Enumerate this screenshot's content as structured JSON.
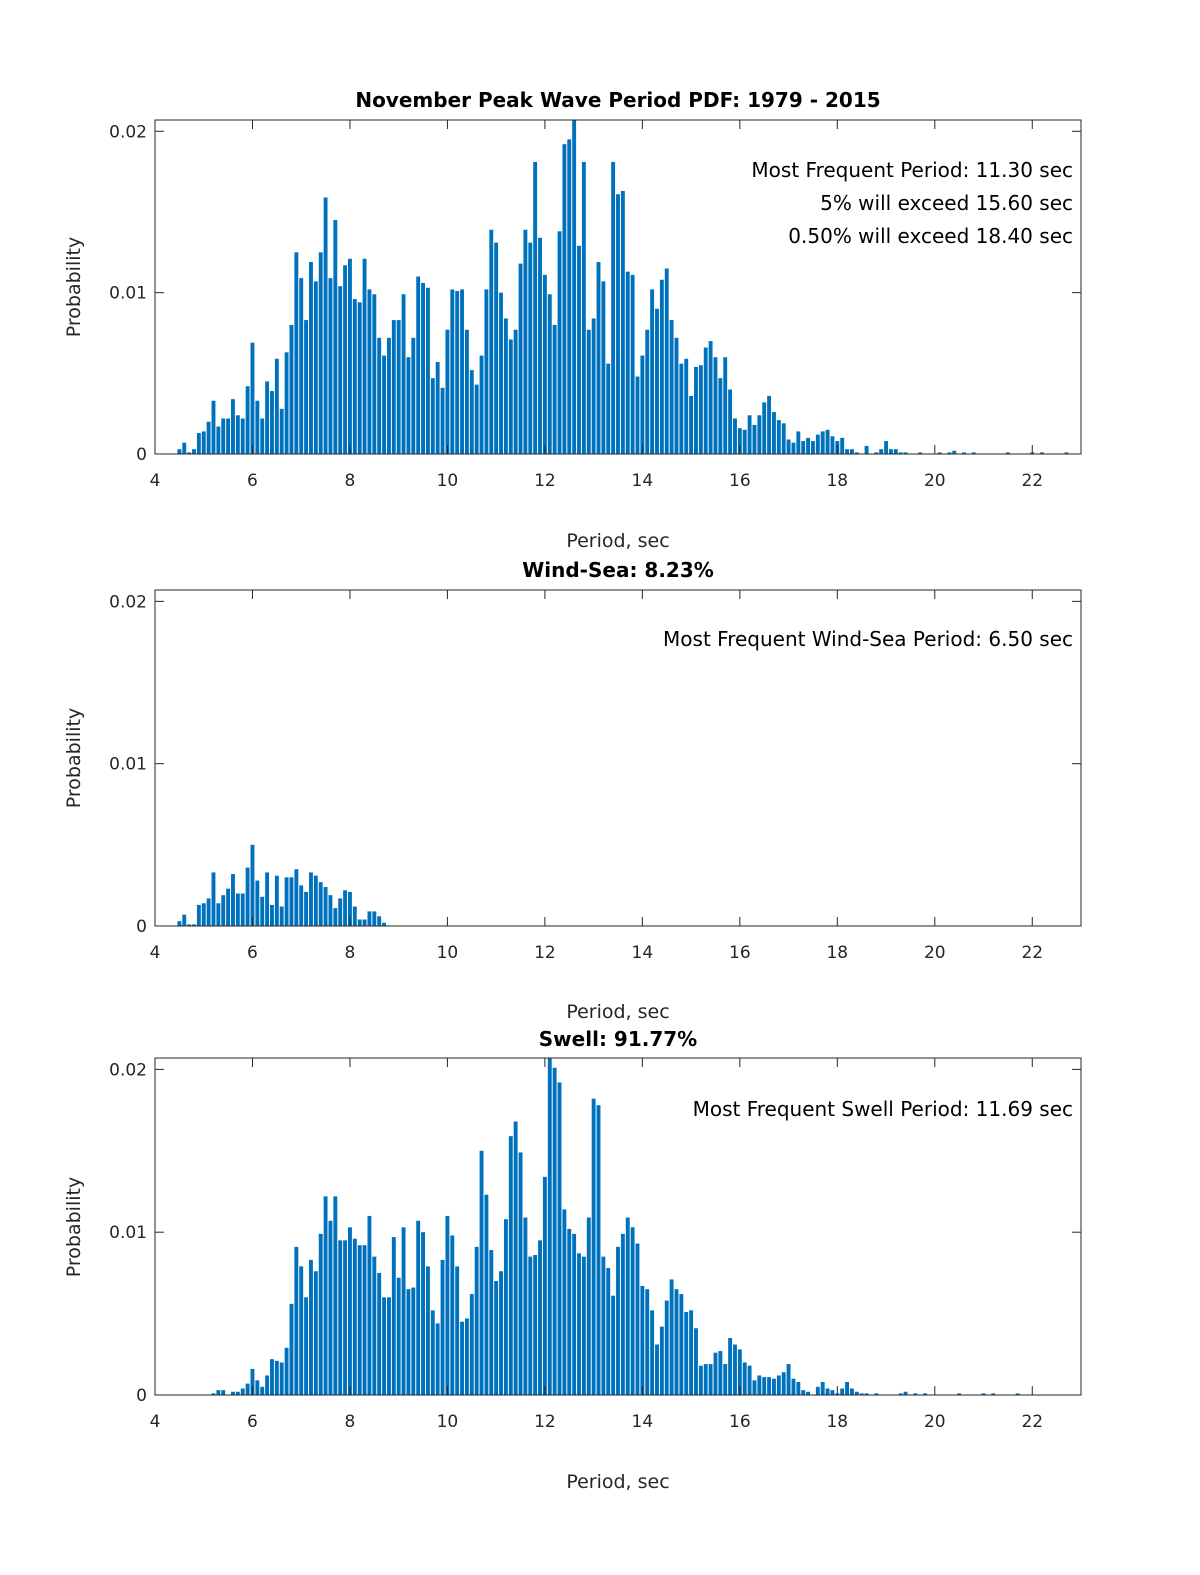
{
  "chart_data": [
    {
      "type": "bar",
      "title": "November Peak Wave Period PDF: 1979 - 2015",
      "xlabel": "Period, sec",
      "ylabel": "Probability",
      "xlim": [
        4,
        23
      ],
      "ylim": [
        0,
        0.0207
      ],
      "xticks": [
        4,
        6,
        8,
        10,
        12,
        14,
        16,
        18,
        20,
        22
      ],
      "yticks": [
        0,
        0.01,
        0.02
      ],
      "ytick_labels": [
        "0",
        "0.01",
        "0.02"
      ],
      "bar_width": 0.08,
      "annotations": [
        "Most Frequent Period: 11.30 sec",
        "5% will exceed 15.60 sec",
        "0.50% will exceed 18.40 sec"
      ],
      "x_start": 4.5,
      "x_step": 0.1,
      "values": [
        0.0003,
        0.0007,
        0.0001,
        0.0003,
        0.0013,
        0.0014,
        0.002,
        0.0033,
        0.0017,
        0.0022,
        0.0022,
        0.0034,
        0.0024,
        0.0022,
        0.0042,
        0.0069,
        0.0033,
        0.0022,
        0.0045,
        0.0039,
        0.0059,
        0.0028,
        0.0063,
        0.008,
        0.0125,
        0.0109,
        0.0083,
        0.0119,
        0.0107,
        0.0125,
        0.0159,
        0.0109,
        0.0145,
        0.0104,
        0.0117,
        0.0121,
        0.0096,
        0.0094,
        0.0121,
        0.0102,
        0.0099,
        0.0072,
        0.0061,
        0.0072,
        0.0083,
        0.0083,
        0.0099,
        0.006,
        0.0072,
        0.011,
        0.0106,
        0.0103,
        0.0047,
        0.0057,
        0.0041,
        0.0077,
        0.0102,
        0.0101,
        0.0102,
        0.0077,
        0.0052,
        0.0043,
        0.0061,
        0.0102,
        0.0139,
        0.0131,
        0.01,
        0.0084,
        0.0071,
        0.0077,
        0.0118,
        0.0139,
        0.0131,
        0.0181,
        0.0134,
        0.0111,
        0.0099,
        0.008,
        0.0138,
        0.0192,
        0.0195,
        0.0207,
        0.0129,
        0.0181,
        0.0077,
        0.0084,
        0.0119,
        0.0107,
        0.0056,
        0.0181,
        0.0161,
        0.0163,
        0.0113,
        0.0111,
        0.0048,
        0.0061,
        0.0077,
        0.0102,
        0.009,
        0.0108,
        0.0115,
        0.0083,
        0.0072,
        0.0056,
        0.0059,
        0.0036,
        0.0054,
        0.0055,
        0.0066,
        0.007,
        0.006,
        0.0047,
        0.006,
        0.004,
        0.0022,
        0.0016,
        0.0015,
        0.0024,
        0.0018,
        0.0024,
        0.0032,
        0.0036,
        0.0026,
        0.0021,
        0.0019,
        0.0009,
        0.0007,
        0.0014,
        0.0008,
        0.001,
        0.0008,
        0.0012,
        0.0014,
        0.0015,
        0.0011,
        0.0008,
        0.001,
        0.0003,
        0.0003,
        0.0001,
        0.0,
        0.0005,
        0.0,
        0.0001,
        0.0003,
        0.0008,
        0.0003,
        0.0003,
        0.0001,
        0.0001,
        0.0,
        0.0,
        0.0001,
        0.0,
        0.0,
        0.0,
        0.0001,
        0.0,
        0.0001,
        0.0002,
        0.0,
        0.0001,
        0.0,
        0.0001,
        0.0,
        0.0,
        0.0,
        0.0,
        0.0,
        0.0,
        0.0001,
        0.0,
        0.0,
        0.0,
        0.0,
        0.0001,
        0.0,
        0.0001,
        0.0,
        0.0,
        0.0,
        0.0,
        0.0001
      ]
    },
    {
      "type": "bar",
      "title": "Wind-Sea: 8.23%",
      "xlabel": "Period, sec",
      "ylabel": "Probability",
      "xlim": [
        4,
        23
      ],
      "ylim": [
        0,
        0.0207
      ],
      "xticks": [
        4,
        6,
        8,
        10,
        12,
        14,
        16,
        18,
        20,
        22
      ],
      "yticks": [
        0,
        0.01,
        0.02
      ],
      "ytick_labels": [
        "0",
        "0.01",
        "0.02"
      ],
      "bar_width": 0.08,
      "annotations": [
        "Most Frequent Wind-Sea Period: 6.50 sec"
      ],
      "x_start": 4.5,
      "x_step": 0.1,
      "values": [
        0.0003,
        0.0007,
        0.0001,
        0.0001,
        0.0013,
        0.0014,
        0.0017,
        0.0033,
        0.0014,
        0.0019,
        0.0023,
        0.0032,
        0.002,
        0.002,
        0.0036,
        0.005,
        0.0028,
        0.0018,
        0.0033,
        0.0013,
        0.0031,
        0.0012,
        0.003,
        0.003,
        0.0035,
        0.0025,
        0.0021,
        0.0033,
        0.0031,
        0.0027,
        0.0024,
        0.0019,
        0.0011,
        0.0017,
        0.0022,
        0.0021,
        0.0012,
        0.0004,
        0.0004,
        0.0009,
        0.0009,
        0.0006,
        0.0002
      ]
    },
    {
      "type": "bar",
      "title": "Swell: 91.77%",
      "xlabel": "Period, sec",
      "ylabel": "Probability",
      "xlim": [
        4,
        23
      ],
      "ylim": [
        0,
        0.0207
      ],
      "xticks": [
        4,
        6,
        8,
        10,
        12,
        14,
        16,
        18,
        20,
        22
      ],
      "yticks": [
        0,
        0.01,
        0.02
      ],
      "ytick_labels": [
        "0",
        "0.01",
        "0.02"
      ],
      "bar_width": 0.08,
      "annotations": [
        "Most Frequent Swell Period: 11.69 sec"
      ],
      "x_start": 5.2,
      "x_step": 0.1,
      "values": [
        0.0001,
        0.0003,
        0.0003,
        0.0,
        0.0002,
        0.0002,
        0.0004,
        0.0007,
        0.0016,
        0.0009,
        0.0005,
        0.0012,
        0.0022,
        0.0021,
        0.002,
        0.0029,
        0.0056,
        0.0091,
        0.0079,
        0.006,
        0.0083,
        0.0076,
        0.0099,
        0.0122,
        0.0107,
        0.0122,
        0.0095,
        0.0095,
        0.0103,
        0.0096,
        0.0092,
        0.0092,
        0.011,
        0.0085,
        0.0075,
        0.006,
        0.006,
        0.0097,
        0.0072,
        0.0103,
        0.0065,
        0.0066,
        0.0107,
        0.01,
        0.0079,
        0.0052,
        0.0044,
        0.0083,
        0.011,
        0.0098,
        0.0079,
        0.0045,
        0.0047,
        0.0062,
        0.0091,
        0.015,
        0.0123,
        0.0089,
        0.007,
        0.0076,
        0.0108,
        0.0159,
        0.0168,
        0.0149,
        0.0109,
        0.0085,
        0.0086,
        0.0095,
        0.0134,
        0.0208,
        0.0201,
        0.0192,
        0.0114,
        0.0102,
        0.0099,
        0.0087,
        0.0085,
        0.0109,
        0.0182,
        0.0178,
        0.0085,
        0.0078,
        0.0061,
        0.0091,
        0.0099,
        0.0109,
        0.0103,
        0.0093,
        0.0067,
        0.0065,
        0.0052,
        0.0031,
        0.0042,
        0.0058,
        0.0071,
        0.0065,
        0.0062,
        0.0051,
        0.0052,
        0.0041,
        0.0018,
        0.0019,
        0.0019,
        0.0026,
        0.0027,
        0.0019,
        0.0035,
        0.0031,
        0.0028,
        0.002,
        0.0018,
        0.0009,
        0.0012,
        0.0011,
        0.0011,
        0.001,
        0.0012,
        0.0014,
        0.0019,
        0.001,
        0.0008,
        0.0003,
        0.0002,
        0.0,
        0.0005,
        0.0008,
        0.0004,
        0.0003,
        0.0001,
        0.0004,
        0.0008,
        0.0004,
        0.0002,
        0.0001,
        0.0001,
        0.0,
        0.0001,
        0.0,
        0.0,
        0.0,
        0.0,
        0.0001,
        0.0002,
        0.0,
        0.0001,
        0.0,
        0.0001,
        0.0,
        0.0,
        0.0,
        0.0,
        0.0,
        0.0,
        0.0001,
        0.0,
        0.0,
        0.0,
        0.0,
        0.0001,
        0.0,
        0.0001,
        0.0,
        0.0,
        0.0,
        0.0,
        0.0001
      ]
    }
  ]
}
